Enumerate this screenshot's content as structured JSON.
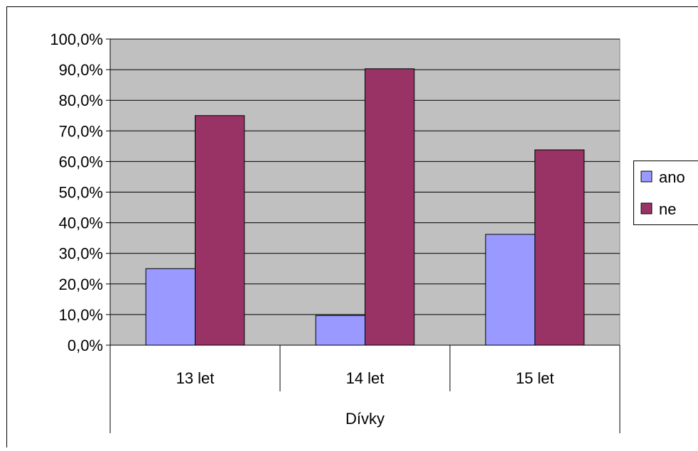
{
  "chart_data": {
    "type": "bar",
    "categories": [
      "13 let",
      "14 let",
      "15 let"
    ],
    "group_label": "Dívky",
    "series": [
      {
        "name": "ano",
        "values": [
          25.0,
          9.7,
          36.2
        ],
        "color": "#9999ff"
      },
      {
        "name": "ne",
        "values": [
          75.0,
          90.3,
          63.8
        ],
        "color": "#993366"
      }
    ],
    "y_ticks": [
      "0,0%",
      "10,0%",
      "20,0%",
      "30,0%",
      "40,0%",
      "50,0%",
      "60,0%",
      "70,0%",
      "80,0%",
      "90,0%",
      "100,0%"
    ],
    "ylim": [
      0,
      100
    ],
    "grid": true,
    "plot_background": "#c0c0c0",
    "legend_position": "right"
  }
}
